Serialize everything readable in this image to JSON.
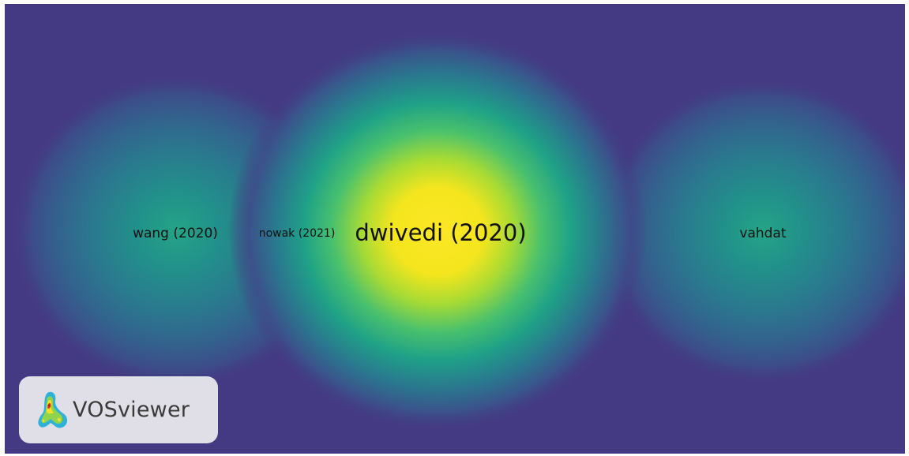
{
  "map": {
    "background_color": "#443a83",
    "colormap": [
      "#443a83",
      "#31688e",
      "#21918c",
      "#35b779",
      "#90d743",
      "#fde725"
    ],
    "items": [
      {
        "id": "wang",
        "label": "wang (2020)"
      },
      {
        "id": "nowak",
        "label": "nowak (2021)"
      },
      {
        "id": "dwivedi",
        "label": "dwivedi (2020)"
      },
      {
        "id": "vahdat",
        "label": "vahdat"
      }
    ]
  },
  "logo": {
    "icon": "vosviewer-logo-icon",
    "text": "VOSviewer"
  }
}
